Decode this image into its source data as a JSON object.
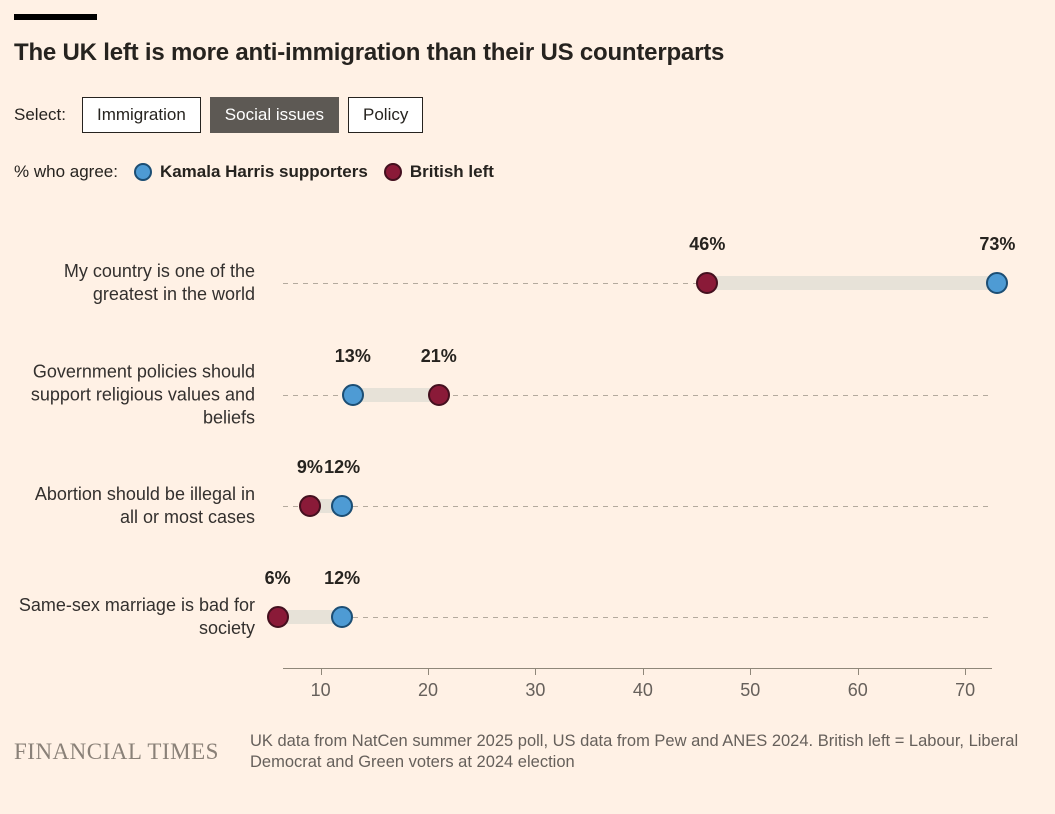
{
  "header": {
    "title": "The UK left is more anti-immigration than their US counterparts"
  },
  "controls": {
    "label": "Select:",
    "buttons": [
      {
        "label": "Immigration",
        "selected": false
      },
      {
        "label": "Social issues",
        "selected": true
      },
      {
        "label": "Policy",
        "selected": false
      }
    ]
  },
  "legend": {
    "label": "% who agree:"
  },
  "chart_data": {
    "type": "dumbbell-dot",
    "title": "The UK left is more anti-immigration than their US counterparts",
    "categories": [
      "My country is one of the greatest in the world",
      "Government policies should support religious values and beliefs",
      "Abortion should be illegal in all or most cases",
      "Same-sex marriage is bad for society"
    ],
    "series": [
      {
        "name": "Kamala Harris supporters",
        "color": "#4E9BD4",
        "stroke": "#1C4E74",
        "values": [
          73,
          13,
          12,
          12
        ]
      },
      {
        "name": "British left",
        "color": "#8A1A38",
        "stroke": "#44101F",
        "values": [
          46,
          21,
          9,
          6
        ]
      }
    ],
    "value_suffix": "%",
    "xlim": [
      6.5,
      72.5
    ],
    "xticks": [
      10,
      20,
      30,
      40,
      50,
      60,
      70
    ],
    "grid": "dashed-horizontal-rows",
    "legend_position": "top"
  },
  "footer": {
    "brand": "FINANCIAL TIMES",
    "source": "UK data from NatCen summer 2025 poll, US data from Pew and ANES 2024. British left = Labour, Liberal Democrat and Green voters at 2024 election"
  },
  "colors": {
    "background": "#FFF1E5",
    "connector": "#E7E2D8",
    "dashed_line": "#B4AA9E",
    "axis": "#8F8779",
    "text_dark": "#26231F",
    "text_muted": "#66605B",
    "selected_button_bg": "#5D5954",
    "harris_blue": "#4E9BD4",
    "british_left_claret": "#8A1A38"
  }
}
